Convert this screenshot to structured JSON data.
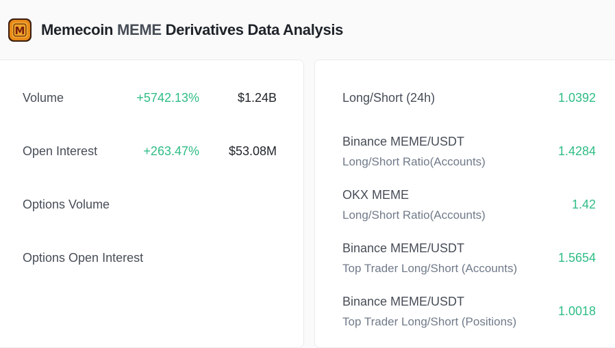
{
  "header": {
    "title_prefix": "Memecoin",
    "title_symbol": "MEME",
    "title_suffix": "Derivatives Data Analysis",
    "logo_icon": "memecoin-logo-icon",
    "logo_letter": "M"
  },
  "left_panel": {
    "rows": [
      {
        "label": "Volume",
        "change": "+5742.13%",
        "value": "$1.24B"
      },
      {
        "label": "Open Interest",
        "change": "+263.47%",
        "value": "$53.08M"
      },
      {
        "label": "Options Volume",
        "change": "",
        "value": ""
      },
      {
        "label": "Options Open Interest",
        "change": "",
        "value": ""
      }
    ]
  },
  "right_panel": {
    "rows": [
      {
        "label": "Long/Short (24h)",
        "sublabel": "",
        "value": "1.0392"
      },
      {
        "label": "Binance MEME/USDT",
        "sublabel": "Long/Short Ratio(Accounts)",
        "value": "1.4284"
      },
      {
        "label": "OKX MEME",
        "sublabel": "Long/Short Ratio(Accounts)",
        "value": "1.42"
      },
      {
        "label": "Binance MEME/USDT",
        "sublabel": "Top Trader Long/Short (Accounts)",
        "value": "1.5654"
      },
      {
        "label": "Binance MEME/USDT",
        "sublabel": "Top Trader Long/Short (Positions)",
        "value": "1.0018"
      }
    ]
  },
  "colors": {
    "positive": "#2ebd85",
    "text_primary": "#1e2329",
    "text_secondary": "#707a8a",
    "border": "#eaecef"
  }
}
